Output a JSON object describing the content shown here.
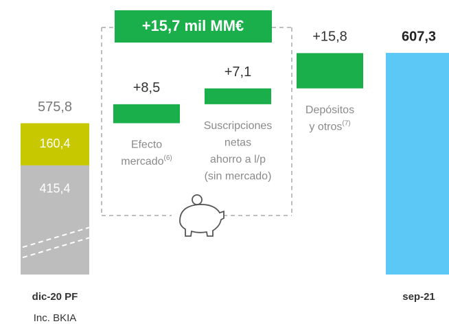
{
  "chart_data": {
    "type": "waterfall",
    "annotation": "+15,7 mil MM€",
    "ylim": [
      508,
      631
    ],
    "axis_break": true,
    "start": {
      "label": "dic-20 PF",
      "sublabel": "Inc. BKIA",
      "value": 575.8,
      "value_label": "575,8",
      "segments": [
        {
          "value": 415.4,
          "value_label": "415,4",
          "color": "#bdbdbd"
        },
        {
          "value": 160.4,
          "value_label": "160,4",
          "color": "#c8c800"
        }
      ]
    },
    "steps": [
      {
        "label": [
          "Efecto",
          "mercado"
        ],
        "note": "(6)",
        "value": 8.5,
        "value_label": "+8,5"
      },
      {
        "label": [
          "Suscripciones",
          "netas",
          "ahorro a l/p",
          "(sin mercado)"
        ],
        "value": 7.1,
        "value_label": "+7,1"
      },
      {
        "label": [
          "Depósitos",
          "y otros"
        ],
        "note": "(7)",
        "value": 15.8,
        "value_label": "+15,8"
      }
    ],
    "step_color": "#1aaf4b",
    "end": {
      "label": "sep-21",
      "value": 607.3,
      "value_label": "607,3",
      "color": "#5bc8f5"
    }
  }
}
